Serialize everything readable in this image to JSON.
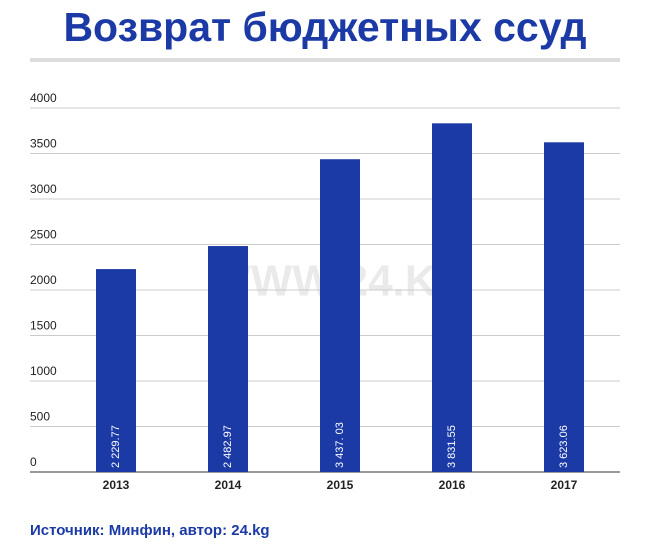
{
  "chart_data": {
    "type": "bar",
    "title": "Возврат бюджетных ссуд",
    "categories": [
      "2013",
      "2014",
      "2015",
      "2016",
      "2017"
    ],
    "values": [
      2229.77,
      2482.97,
      3437.03,
      3831.55,
      3623.06
    ],
    "value_labels": [
      "2 229.77",
      "2 482.97",
      "3 437. 03",
      "3 831.55",
      "3 623.06"
    ],
    "color": "#1b3aa5",
    "ylim": [
      0,
      4000
    ],
    "yticks": [
      0,
      500,
      1000,
      1500,
      2000,
      2500,
      3000,
      3500,
      4000
    ],
    "grid": true,
    "watermark": "WWW.24.KG",
    "source": "Источник: Минфин, автор: 24.kg"
  }
}
